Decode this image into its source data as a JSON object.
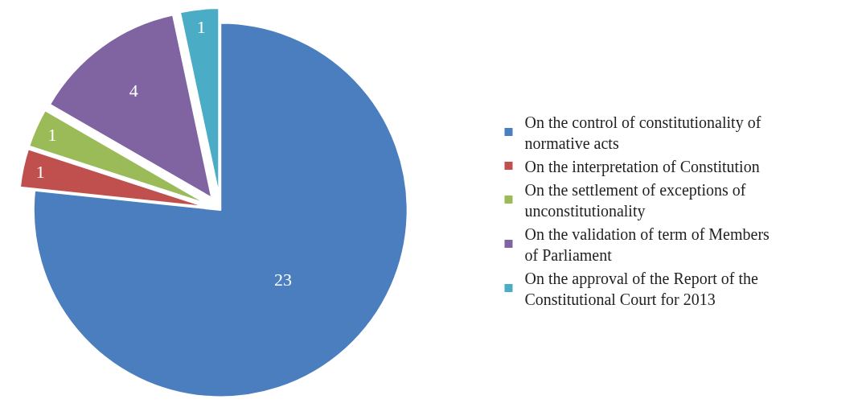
{
  "chart_data": {
    "type": "pie",
    "categories": [
      "On the control of constitutionality of normative acts",
      "On the interpretation of Constitution",
      "On the settlement of exceptions of unconstitutionality",
      "On the validation of term of Members of Parliament",
      "On the approval of the Report of the Constitutional Court for 2013"
    ],
    "values": [
      23,
      1,
      1,
      4,
      1
    ],
    "colors": [
      "#4a7ebf",
      "#c0504d",
      "#9bbb59",
      "#8064a2",
      "#4bacc6"
    ],
    "data_labels": true,
    "legend": "right"
  }
}
